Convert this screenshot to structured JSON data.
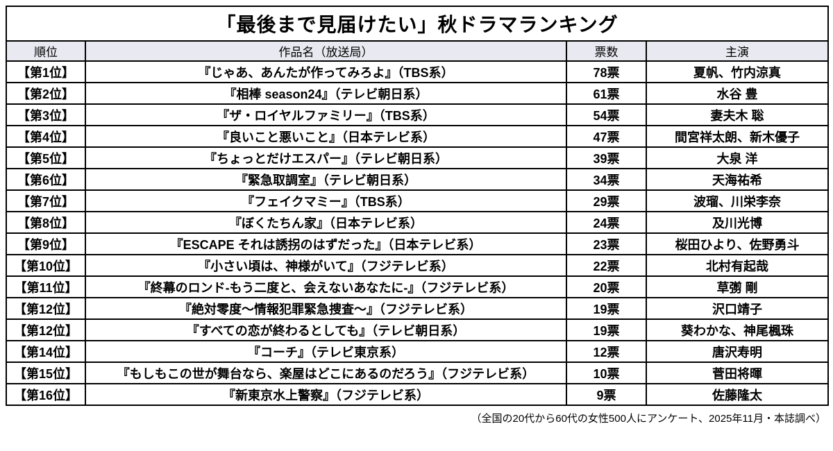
{
  "colors": {
    "header_background": "#e9e9f1",
    "border": "#000000",
    "background": "#ffffff"
  },
  "chart_data": {
    "type": "table",
    "title": "「最後まで見届けたい」秋ドラマランキング",
    "columns": [
      "順位",
      "作品名（放送局）",
      "票数",
      "主演"
    ],
    "rows": [
      {
        "rank": "【第1位】",
        "title": "『じゃあ、あんたが作ってみろよ』（TBS系）",
        "votes": "78票",
        "cast": "夏帆、竹内涼真"
      },
      {
        "rank": "【第2位】",
        "title": "『相棒 season24』（テレビ朝日系）",
        "votes": "61票",
        "cast": "水谷 豊"
      },
      {
        "rank": "【第3位】",
        "title": "『ザ・ロイヤルファミリー』（TBS系）",
        "votes": "54票",
        "cast": "妻夫木 聡"
      },
      {
        "rank": "【第4位】",
        "title": "『良いこと悪いこと』（日本テレビ系）",
        "votes": "47票",
        "cast": "間宮祥太朗、新木優子"
      },
      {
        "rank": "【第5位】",
        "title": "『ちょっとだけエスパー』（テレビ朝日系）",
        "votes": "39票",
        "cast": "大泉 洋"
      },
      {
        "rank": "【第6位】",
        "title": "『緊急取調室』（テレビ朝日系）",
        "votes": "34票",
        "cast": "天海祐希"
      },
      {
        "rank": "【第7位】",
        "title": "『フェイクマミー』（TBS系）",
        "votes": "29票",
        "cast": "波瑠、川栄李奈"
      },
      {
        "rank": "【第8位】",
        "title": "『ぼくたちん家』（日本テレビ系）",
        "votes": "24票",
        "cast": "及川光博"
      },
      {
        "rank": "【第9位】",
        "title": "『ESCAPE それは誘拐のはずだった』（日本テレビ系）",
        "votes": "23票",
        "cast": "桜田ひより、佐野勇斗"
      },
      {
        "rank": "【第10位】",
        "title": "『小さい頃は、神様がいて』（フジテレビ系）",
        "votes": "22票",
        "cast": "北村有起哉"
      },
      {
        "rank": "【第11位】",
        "title": "『終幕のロンド-もう二度と、会えないあなたに-』（フジテレビ系）",
        "votes": "20票",
        "cast": "草彅 剛"
      },
      {
        "rank": "【第12位】",
        "title": "『絶対零度〜情報犯罪緊急捜査〜』（フジテレビ系）",
        "votes": "19票",
        "cast": "沢口靖子"
      },
      {
        "rank": "【第12位】",
        "title": "『すべての恋が終わるとしても』（テレビ朝日系）",
        "votes": "19票",
        "cast": "葵わかな、神尾楓珠"
      },
      {
        "rank": "【第14位】",
        "title": "『コーチ』（テレビ東京系）",
        "votes": "12票",
        "cast": "唐沢寿明"
      },
      {
        "rank": "【第15位】",
        "title": "『もしもこの世が舞台なら、楽屋はどこにあるのだろう』（フジテレビ系）",
        "votes": "10票",
        "cast": "菅田将暉"
      },
      {
        "rank": "【第16位】",
        "title": "『新東京水上警察』（フジテレビ系）",
        "votes": "9票",
        "cast": "佐藤隆太"
      }
    ],
    "votes_numeric": [
      78,
      61,
      54,
      47,
      39,
      34,
      29,
      24,
      23,
      22,
      20,
      19,
      19,
      12,
      10,
      9
    ],
    "footnote": "（全国の20代から60代の女性500人にアンケート、2025年11月・本誌調べ）"
  }
}
